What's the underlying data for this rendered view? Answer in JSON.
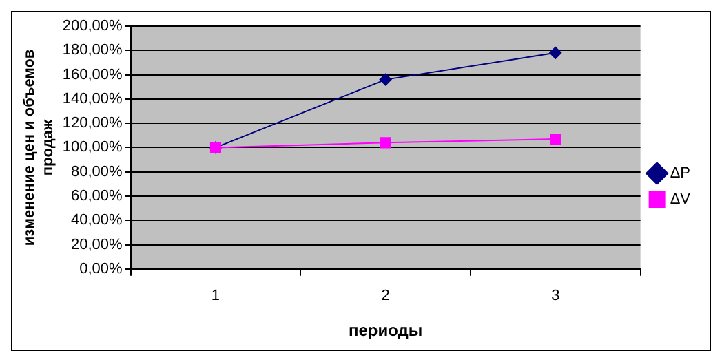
{
  "chart_data": {
    "type": "line",
    "xlabel": "периоды",
    "ylabel": "изменение цен и объемов продаж",
    "categories": [
      "1",
      "2",
      "3"
    ],
    "series": [
      {
        "name": "ΔP",
        "color": "#000080",
        "values": [
          100,
          156,
          178
        ],
        "marker": "diamond"
      },
      {
        "name": "ΔV",
        "color": "#ff00ff",
        "values": [
          100,
          104,
          107
        ],
        "marker": "square"
      }
    ],
    "ylim": [
      0,
      200
    ],
    "yticks": [
      {
        "value": 0,
        "label": "0,00%"
      },
      {
        "value": 20,
        "label": "20,00%"
      },
      {
        "value": 40,
        "label": "40,00%"
      },
      {
        "value": 60,
        "label": "60,00%"
      },
      {
        "value": 80,
        "label": "80,00%"
      },
      {
        "value": 100,
        "label": "100,00%"
      },
      {
        "value": 120,
        "label": "120,00%"
      },
      {
        "value": 140,
        "label": "140,00%"
      },
      {
        "value": 160,
        "label": "160,00%"
      },
      {
        "value": 180,
        "label": "180,00%"
      },
      {
        "value": 200,
        "label": "200,00%"
      }
    ],
    "grid": "y",
    "legend": "right",
    "line_style": "solid"
  }
}
